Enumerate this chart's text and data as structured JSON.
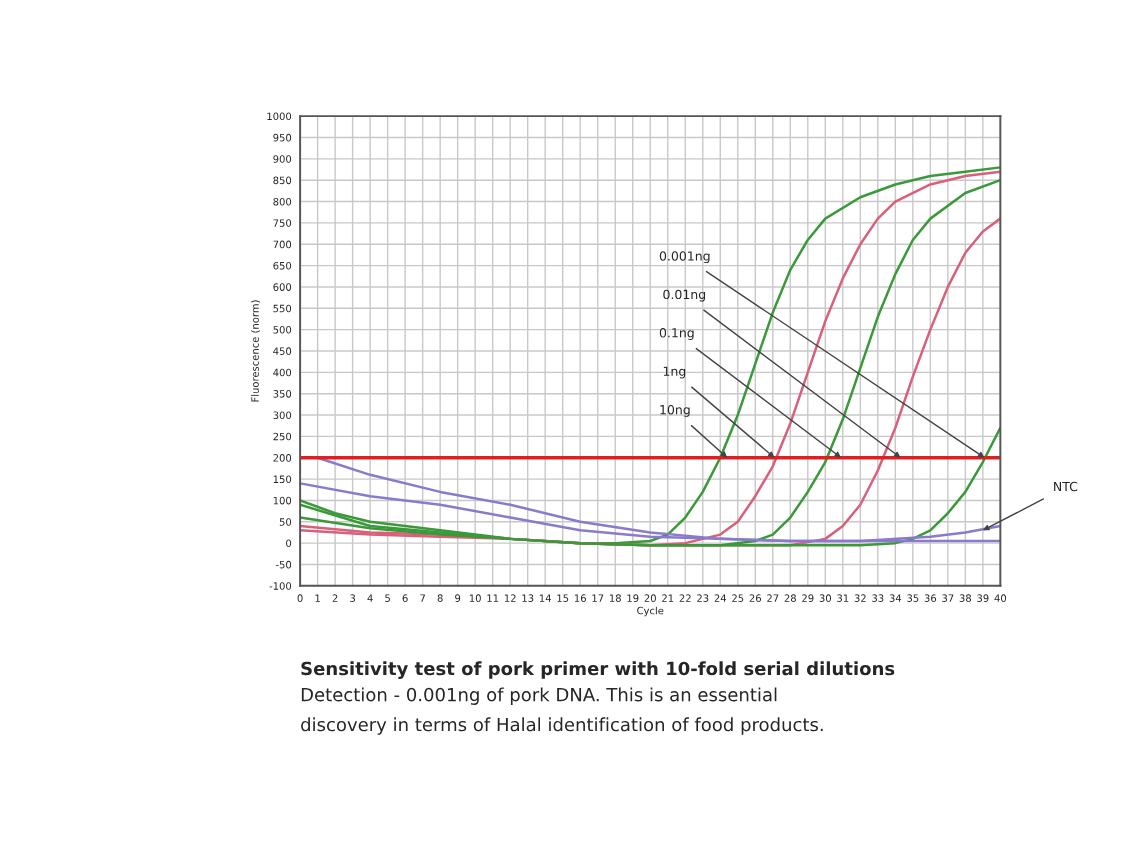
{
  "chart_data": {
    "type": "line",
    "title": "Sensitivity test of pork primer with 10-fold serial dilutions",
    "xlabel": "Cycle",
    "ylabel": "Fluorescence (norm)",
    "xlim": [
      0,
      40
    ],
    "xticks": [
      0,
      1,
      2,
      3,
      4,
      5,
      6,
      7,
      8,
      9,
      10,
      11,
      12,
      13,
      14,
      15,
      16,
      17,
      18,
      19,
      20,
      21,
      22,
      23,
      24,
      25,
      26,
      27,
      28,
      29,
      30,
      31,
      32,
      33,
      34,
      35,
      36,
      37,
      38,
      39,
      40
    ],
    "ylim": [
      -100,
      1000
    ],
    "yticks": [
      -100,
      -50,
      0,
      50,
      100,
      150,
      200,
      250,
      300,
      350,
      400,
      450,
      500,
      550,
      600,
      650,
      700,
      750,
      800,
      850,
      900,
      950,
      1000
    ],
    "grid": true,
    "legend": false,
    "series": [
      {
        "color": "#3a9a3a",
        "x": [
          0,
          2,
          4,
          6,
          8,
          10,
          12,
          14,
          16,
          18,
          20,
          21,
          22,
          23,
          24,
          25,
          26,
          27,
          28,
          29,
          30,
          32,
          34,
          36,
          38,
          40
        ],
        "values": [
          100,
          70,
          50,
          40,
          30,
          20,
          10,
          5,
          0,
          0,
          5,
          20,
          60,
          120,
          200,
          300,
          420,
          540,
          640,
          710,
          760,
          810,
          840,
          860,
          870,
          880
        ]
      },
      {
        "color": "#d9607a",
        "x": [
          0,
          4,
          8,
          12,
          16,
          20,
          22,
          24,
          25,
          26,
          27,
          28,
          29,
          30,
          31,
          32,
          33,
          34,
          36,
          38,
          40
        ],
        "values": [
          40,
          25,
          20,
          10,
          0,
          -5,
          0,
          20,
          50,
          110,
          180,
          280,
          400,
          520,
          620,
          700,
          760,
          800,
          840,
          860,
          870
        ]
      },
      {
        "color": "#3a9a3a",
        "x": [
          0,
          4,
          8,
          12,
          16,
          20,
          24,
          26,
          27,
          28,
          29,
          30,
          31,
          32,
          33,
          34,
          35,
          36,
          38,
          40
        ],
        "values": [
          90,
          40,
          25,
          10,
          0,
          -5,
          -5,
          5,
          20,
          60,
          120,
          190,
          290,
          410,
          530,
          630,
          710,
          760,
          820,
          850
        ]
      },
      {
        "color": "#d9607a",
        "x": [
          0,
          4,
          8,
          12,
          16,
          20,
          24,
          28,
          30,
          31,
          32,
          33,
          34,
          35,
          36,
          37,
          38,
          39,
          40
        ],
        "values": [
          30,
          20,
          15,
          10,
          0,
          -5,
          -5,
          -5,
          10,
          40,
          90,
          170,
          270,
          390,
          500,
          600,
          680,
          730,
          760
        ]
      },
      {
        "color": "#3a9a3a",
        "x": [
          0,
          4,
          8,
          12,
          16,
          20,
          24,
          28,
          32,
          34,
          35,
          36,
          37,
          38,
          39,
          40
        ],
        "values": [
          60,
          35,
          20,
          10,
          0,
          -5,
          -5,
          -5,
          -5,
          0,
          10,
          30,
          70,
          120,
          190,
          270
        ]
      },
      {
        "color": "#8a7acc",
        "x": [
          0,
          4,
          8,
          12,
          16,
          20,
          24,
          28,
          32,
          36,
          38,
          40
        ],
        "values": [
          140,
          110,
          90,
          60,
          30,
          15,
          10,
          5,
          5,
          15,
          25,
          40
        ]
      },
      {
        "color": "#8a7acc",
        "x": [
          1,
          4,
          8,
          12,
          16,
          20,
          24,
          28,
          32,
          36,
          40
        ],
        "values": [
          200,
          160,
          120,
          90,
          50,
          25,
          10,
          5,
          5,
          5,
          5
        ]
      }
    ],
    "ref_lines": [
      {
        "axis": "y",
        "value": 200,
        "color": "#e02020"
      }
    ],
    "annotations": [
      {
        "text": "0.001ng",
        "x": 39.1,
        "y": 200
      },
      {
        "text": "0.01ng",
        "x": 34.3,
        "y": 200
      },
      {
        "text": "0.1ng",
        "x": 30.9,
        "y": 200
      },
      {
        "text": "1ng",
        "x": 27.1,
        "y": 200
      },
      {
        "text": "10ng",
        "x": 24.4,
        "y": 200
      },
      {
        "text": "NTC",
        "x": 39,
        "y": 30
      },
      "Detection - 0.001ng of pork DNA. This is an essential",
      "discovery in terms of Halal identification of food products."
    ]
  }
}
